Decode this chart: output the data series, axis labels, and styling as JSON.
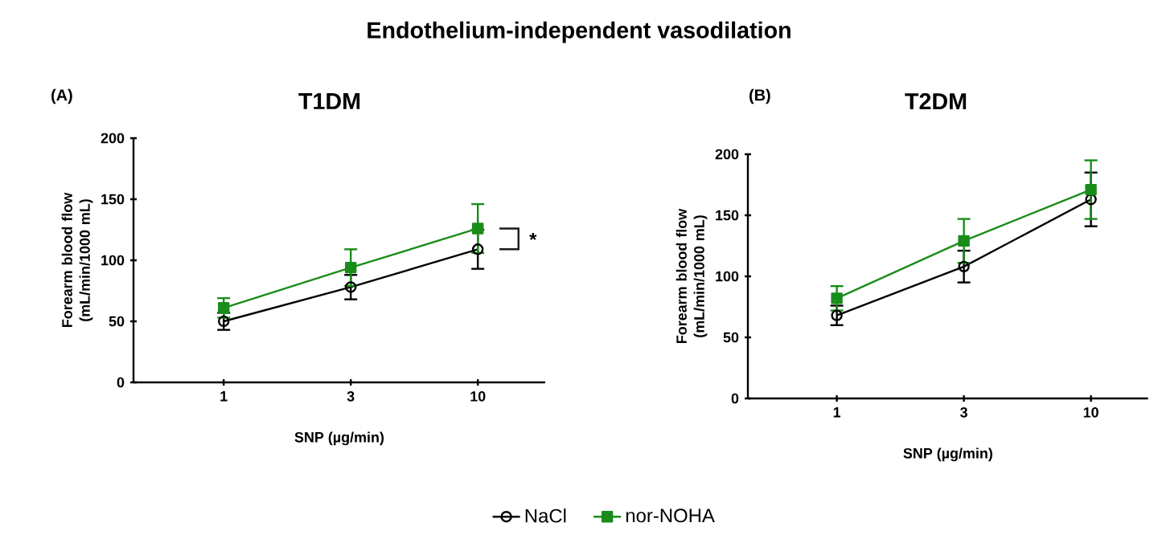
{
  "chart_data": [
    {
      "type": "line",
      "title": "T1DM",
      "xlabel": "SNP (µg/min)",
      "ylabel": "Forearm blood flow (mL/min/1000 mL)",
      "categories": [
        "1",
        "3",
        "10"
      ],
      "ylim": [
        0,
        200
      ],
      "yticks": [
        0,
        50,
        100,
        150,
        200
      ],
      "legend": "bottom",
      "grid": false,
      "annotations": [
        "Endothelium-independent vasodilation",
        "(A)",
        {
          "text": "*",
          "x": "10",
          "y": 117
        }
      ],
      "series": [
        {
          "name": "NaCl",
          "color": "#000000",
          "marker": "circle",
          "values": [
            50,
            78,
            109
          ],
          "errors": [
            7,
            10,
            16
          ]
        },
        {
          "name": "nor-NOHA",
          "color": "#1a8c1a",
          "marker": "square",
          "values": [
            61,
            94,
            126
          ],
          "errors": [
            8,
            15,
            20
          ]
        }
      ]
    },
    {
      "type": "line",
      "title": "T2DM",
      "xlabel": "SNP (µg/min)",
      "ylabel": "Forearm blood flow (mL/min/1000 mL)",
      "categories": [
        "1",
        "3",
        "10"
      ],
      "ylim": [
        0,
        200
      ],
      "yticks": [
        0,
        50,
        100,
        150,
        200
      ],
      "grid": false,
      "annotations": [
        "(B)"
      ],
      "series": [
        {
          "color": "#000000",
          "marker": "circle",
          "values": [
            68,
            108,
            163
          ],
          "errors": [
            8,
            13,
            22
          ]
        },
        {
          "color": "#1a8c1a",
          "marker": "square",
          "values": [
            82,
            129,
            171
          ],
          "errors": [
            10,
            18,
            24
          ]
        }
      ]
    }
  ]
}
